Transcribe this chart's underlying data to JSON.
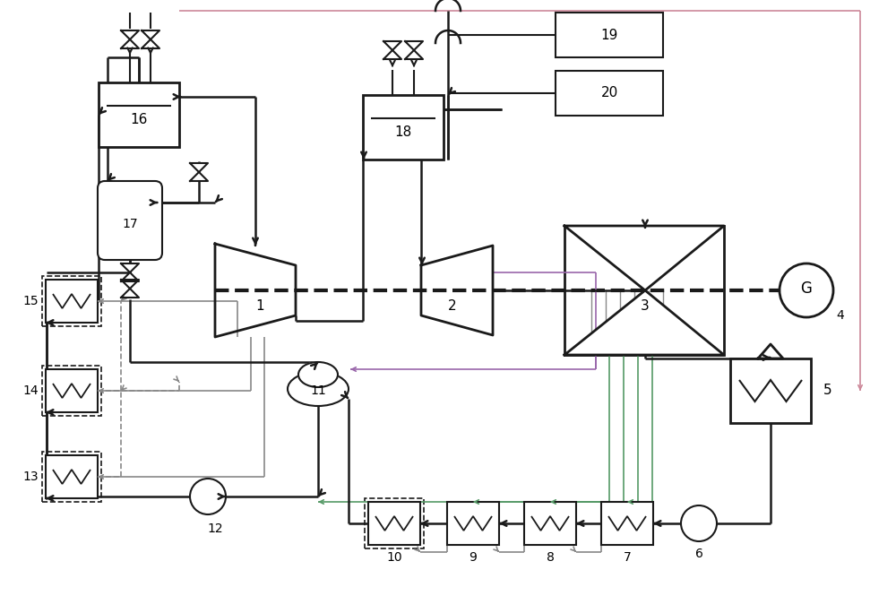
{
  "bg_color": "#ffffff",
  "lc": "#1a1a1a",
  "gray": "#888888",
  "pink": "#cc8899",
  "green": "#7799aa",
  "purple": "#9966aa",
  "fig_width": 10.0,
  "fig_height": 6.84,
  "dpi": 100
}
